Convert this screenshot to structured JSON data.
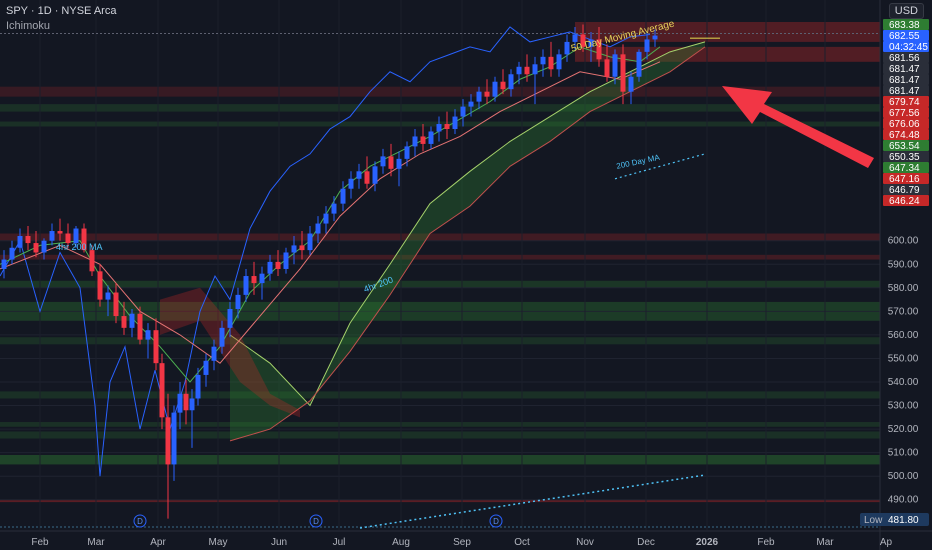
{
  "header": {
    "symbol_line": "SPY · 1D · NYSE Arca",
    "indicator": "Ichimoku",
    "currency": "USD"
  },
  "chart_data": {
    "type": "candlestick",
    "ylim": [
      478,
      690
    ],
    "y_ticks": [
      490,
      500,
      510,
      520,
      530,
      540,
      550,
      560,
      570,
      580,
      590,
      600
    ],
    "x_ticks": [
      "Feb",
      "Mar",
      "Apr",
      "May",
      "Jun",
      "Jul",
      "Aug",
      "Sep",
      "Oct",
      "Nov",
      "Dec",
      "2026",
      "Feb",
      "Mar",
      "Ap"
    ],
    "x_tick_days": [
      40,
      96,
      158,
      218,
      279,
      339,
      401,
      462,
      522,
      585,
      646,
      707,
      766,
      825,
      886
    ],
    "price_tags": [
      {
        "label": "683.38",
        "value": 683.38,
        "color": "#2e7d32"
      },
      {
        "label": "682.55",
        "value": 682.55,
        "color": "#2962ff"
      },
      {
        "label": "04:32:45",
        "value": 681.9,
        "color": "#2962ff"
      },
      {
        "label": "681.56",
        "value": 681.56,
        "color": "#2a2e39"
      },
      {
        "label": "681.47",
        "value": 681.47,
        "color": "#2a2e39"
      },
      {
        "label": "681.47",
        "value": 681.47,
        "color": "#2a2e39"
      },
      {
        "label": "681.47",
        "value": 681.47,
        "color": "#2a2e39"
      },
      {
        "label": "679.74",
        "value": 679.74,
        "color": "#c62828"
      },
      {
        "label": "677.56",
        "value": 677.56,
        "color": "#c62828"
      },
      {
        "label": "676.06",
        "value": 676.06,
        "color": "#c62828"
      },
      {
        "label": "674.48",
        "value": 674.48,
        "color": "#c62828"
      },
      {
        "label": "653.54",
        "value": 653.54,
        "color": "#2e7d32"
      },
      {
        "label": "650.35",
        "value": 650.35,
        "color": "#2a2e39"
      },
      {
        "label": "647.34",
        "value": 647.34,
        "color": "#2e7d32"
      },
      {
        "label": "647.16",
        "value": 647.16,
        "color": "#c62828"
      },
      {
        "label": "646.79",
        "value": 646.79,
        "color": "#2a2e39"
      },
      {
        "label": "646.24",
        "value": 646.24,
        "color": "#c62828"
      }
    ],
    "low_tag": {
      "label": "Low",
      "value": "481.80"
    },
    "annotations": [
      "50 Day Moving Average",
      "200 Day MA",
      "4hr 200 MA",
      "4hr 200"
    ],
    "event_markers": [
      "D",
      "D",
      "D"
    ],
    "candles_approx": [
      [
        0,
        588,
        596,
        584,
        592
      ],
      [
        8,
        592,
        600,
        590,
        597
      ],
      [
        16,
        597,
        605,
        595,
        602
      ],
      [
        24,
        602,
        606,
        596,
        599
      ],
      [
        32,
        599,
        604,
        593,
        595
      ],
      [
        40,
        595,
        601,
        592,
        600
      ],
      [
        48,
        600,
        607,
        598,
        604
      ],
      [
        56,
        604,
        609,
        600,
        603
      ],
      [
        64,
        603,
        607,
        597,
        599
      ],
      [
        72,
        599,
        606,
        597,
        605
      ],
      [
        80,
        605,
        607,
        595,
        596
      ],
      [
        88,
        596,
        598,
        585,
        587
      ],
      [
        96,
        587,
        590,
        572,
        575
      ],
      [
        104,
        575,
        581,
        568,
        578
      ],
      [
        112,
        578,
        582,
        565,
        568
      ],
      [
        120,
        568,
        574,
        560,
        563
      ],
      [
        128,
        563,
        571,
        559,
        569
      ],
      [
        136,
        569,
        572,
        556,
        558
      ],
      [
        144,
        558,
        565,
        550,
        562
      ],
      [
        152,
        562,
        567,
        545,
        548
      ],
      [
        158,
        548,
        552,
        520,
        525
      ],
      [
        164,
        525,
        535,
        482,
        505
      ],
      [
        170,
        505,
        530,
        498,
        527
      ],
      [
        176,
        527,
        540,
        520,
        535
      ],
      [
        182,
        535,
        541,
        522,
        528
      ],
      [
        188,
        528,
        537,
        512,
        533
      ],
      [
        194,
        533,
        546,
        530,
        543
      ],
      [
        202,
        543,
        552,
        538,
        549
      ],
      [
        210,
        549,
        558,
        545,
        555
      ],
      [
        218,
        555,
        566,
        552,
        563
      ],
      [
        226,
        563,
        574,
        559,
        571
      ],
      [
        234,
        571,
        580,
        567,
        577
      ],
      [
        242,
        577,
        588,
        574,
        585
      ],
      [
        250,
        585,
        591,
        577,
        582
      ],
      [
        258,
        582,
        589,
        575,
        586
      ],
      [
        266,
        586,
        594,
        583,
        591
      ],
      [
        274,
        591,
        596,
        585,
        588
      ],
      [
        282,
        588,
        597,
        586,
        595
      ],
      [
        290,
        595,
        602,
        590,
        598
      ],
      [
        298,
        598,
        604,
        592,
        596
      ],
      [
        306,
        596,
        606,
        594,
        603
      ],
      [
        314,
        603,
        610,
        599,
        607
      ],
      [
        322,
        607,
        614,
        603,
        611
      ],
      [
        330,
        611,
        618,
        608,
        615
      ],
      [
        339,
        615,
        624,
        612,
        621
      ],
      [
        347,
        621,
        628,
        617,
        625
      ],
      [
        355,
        625,
        631,
        621,
        628
      ],
      [
        363,
        628,
        634,
        621,
        623
      ],
      [
        371,
        623,
        632,
        620,
        630
      ],
      [
        379,
        630,
        637,
        627,
        634
      ],
      [
        387,
        634,
        639,
        626,
        629
      ],
      [
        395,
        629,
        636,
        622,
        633
      ],
      [
        403,
        633,
        640,
        630,
        638
      ],
      [
        411,
        638,
        645,
        634,
        642
      ],
      [
        419,
        642,
        647,
        636,
        639
      ],
      [
        427,
        639,
        646,
        637,
        644
      ],
      [
        435,
        644,
        650,
        640,
        647
      ],
      [
        443,
        647,
        652,
        641,
        645
      ],
      [
        451,
        645,
        653,
        643,
        650
      ],
      [
        459,
        650,
        657,
        646,
        654
      ],
      [
        467,
        654,
        659,
        650,
        656
      ],
      [
        475,
        656,
        662,
        653,
        660
      ],
      [
        483,
        660,
        665,
        655,
        658
      ],
      [
        491,
        658,
        666,
        656,
        664
      ],
      [
        499,
        664,
        669,
        659,
        661
      ],
      [
        507,
        661,
        669,
        658,
        667
      ],
      [
        515,
        667,
        672,
        663,
        670
      ],
      [
        523,
        670,
        675,
        664,
        667
      ],
      [
        531,
        667,
        674,
        655,
        671
      ],
      [
        539,
        671,
        677,
        666,
        674
      ],
      [
        547,
        674,
        680,
        666,
        669
      ],
      [
        555,
        669,
        677,
        666,
        675
      ],
      [
        563,
        675,
        683,
        672,
        680
      ],
      [
        571,
        680,
        686,
        677,
        683
      ],
      [
        579,
        683,
        687,
        676,
        678
      ],
      [
        587,
        678,
        684,
        672,
        681
      ],
      [
        595,
        681,
        686,
        670,
        673
      ],
      [
        603,
        673,
        679,
        664,
        666
      ],
      [
        611,
        666,
        677,
        663,
        675
      ],
      [
        619,
        675,
        679,
        655,
        660
      ],
      [
        627,
        660,
        668,
        655,
        666
      ],
      [
        635,
        666,
        677,
        664,
        676
      ],
      [
        643,
        676,
        684,
        673,
        681
      ],
      [
        651,
        681,
        685,
        678,
        682.55
      ]
    ]
  }
}
